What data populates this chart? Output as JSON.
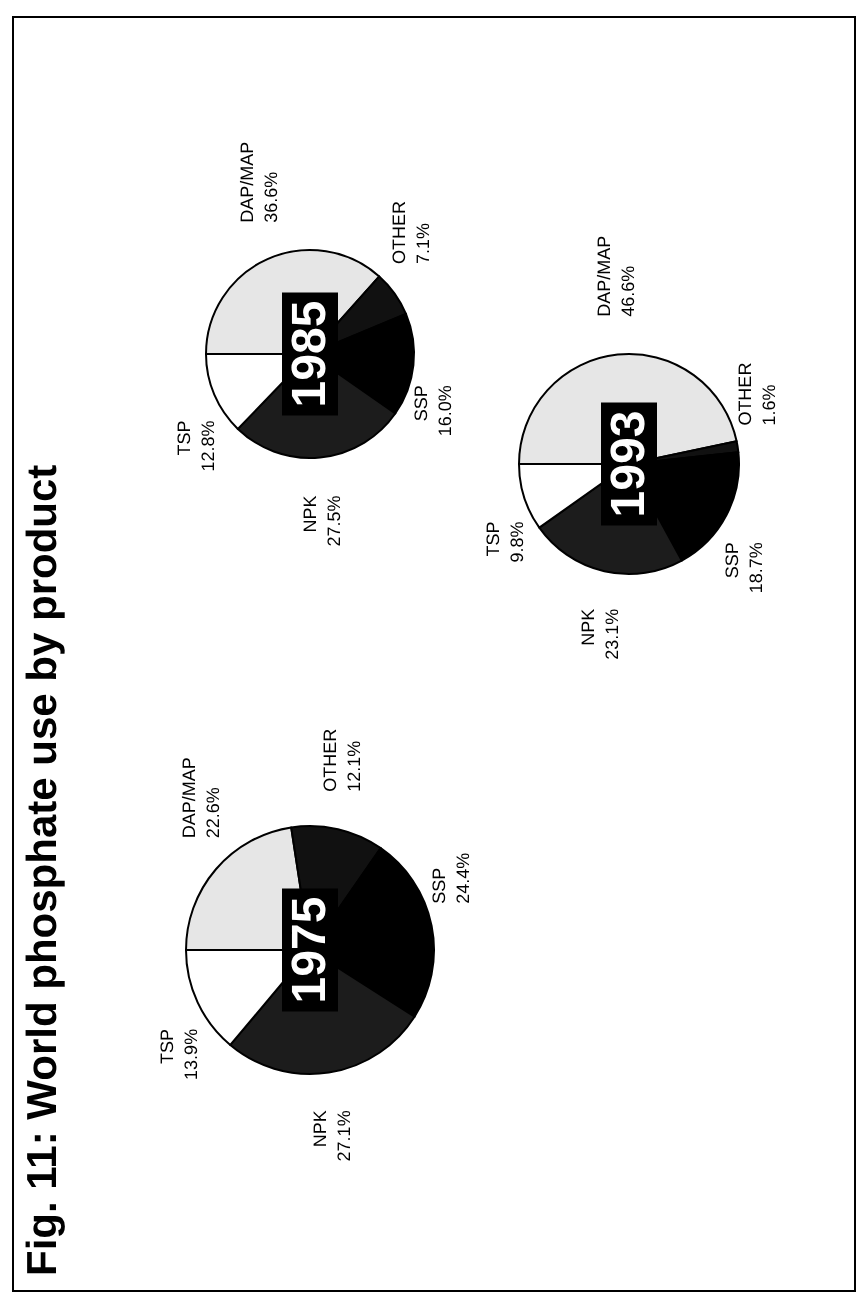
{
  "chart_data": [
    {
      "type": "pie",
      "title": "Fig. 11: World phosphate use by product",
      "subtitle": "1975",
      "categories": [
        "DAP/MAP",
        "OTHER",
        "SSP",
        "NPK",
        "TSP"
      ],
      "values": [
        22.6,
        12.1,
        24.4,
        27.1,
        13.9
      ],
      "value_labels": [
        "22.6%",
        "12.1%",
        "24.4%",
        "27.1%",
        "13.9%"
      ],
      "colors": [
        "#e6e6e6",
        "#111111",
        "#000000",
        "#1c1c1c",
        "#ffffff"
      ],
      "legend": false
    },
    {
      "type": "pie",
      "subtitle": "1985",
      "categories": [
        "DAP/MAP",
        "OTHER",
        "SSP",
        "NPK",
        "TSP"
      ],
      "values": [
        36.6,
        7.1,
        16.0,
        27.5,
        12.8
      ],
      "value_labels": [
        "36.6%",
        "7.1%",
        "16.0%",
        "27.5%",
        "12.8%"
      ],
      "colors": [
        "#e6e6e6",
        "#111111",
        "#000000",
        "#1c1c1c",
        "#ffffff"
      ],
      "legend": false
    },
    {
      "type": "pie",
      "subtitle": "1993",
      "categories": [
        "DAP/MAP",
        "OTHER",
        "SSP",
        "NPK",
        "TSP"
      ],
      "values": [
        46.6,
        1.6,
        18.7,
        23.1,
        9.8
      ],
      "value_labels": [
        "46.6%",
        "1.6%",
        "18.7%",
        "23.1%",
        "9.8%"
      ],
      "colors": [
        "#e6e6e6",
        "#111111",
        "#000000",
        "#1c1c1c",
        "#ffffff"
      ],
      "legend": false
    }
  ]
}
